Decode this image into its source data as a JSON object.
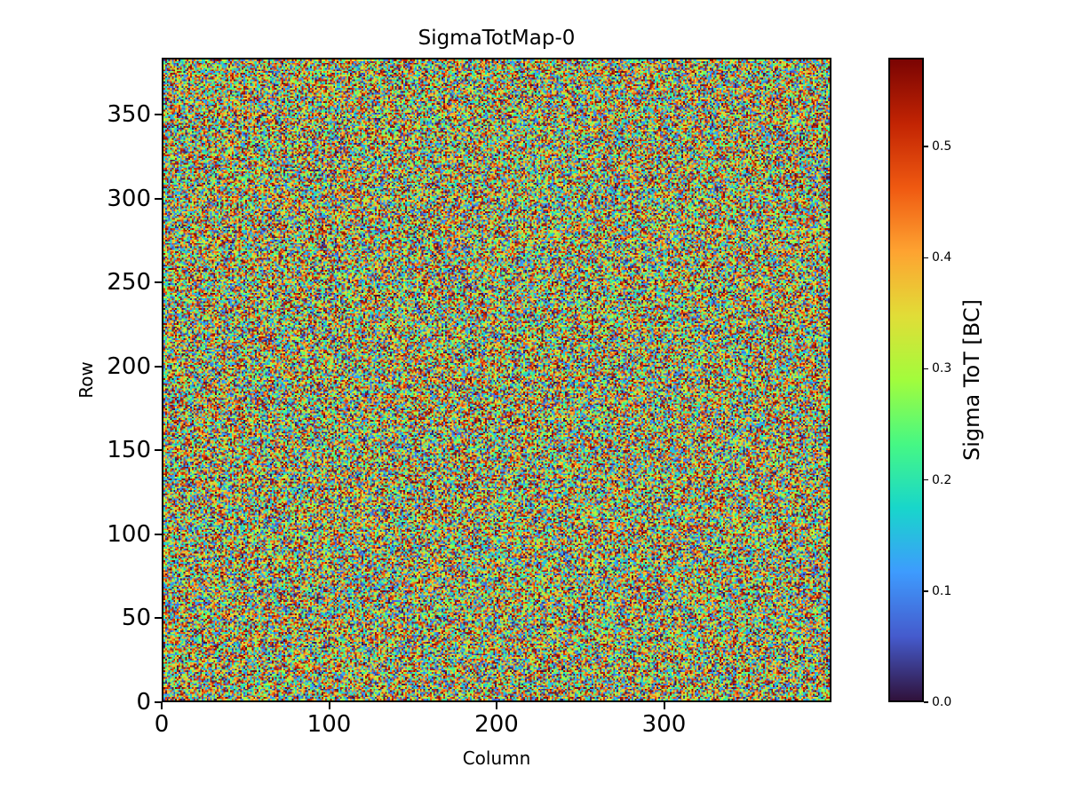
{
  "figure": {
    "background": "#ffffff",
    "text_color": "#000000"
  },
  "chart_data": {
    "type": "heatmap",
    "title": "SigmaTotMap-0",
    "xlabel": "Column",
    "ylabel": "Row",
    "x_range": [
      0,
      400
    ],
    "y_range": [
      0,
      384
    ],
    "x_ticks": [
      0,
      100,
      200,
      300
    ],
    "y_ticks": [
      0,
      50,
      100,
      150,
      200,
      250,
      300,
      350
    ],
    "grid": false,
    "legend": "none",
    "cells": {
      "cols": 400,
      "rows": 384,
      "description": "per-pixel uniform random noise spanning the full color scale (no visible spatial structure)",
      "value_min": 0.0,
      "value_max": 0.58
    },
    "colorbar": {
      "label": "Sigma ToT [BC]",
      "ticks": [
        0.0,
        0.1,
        0.2,
        0.3,
        0.4,
        0.5
      ],
      "tick_decimals": 1,
      "vmin": 0.0,
      "vmax": 0.58,
      "position": "right"
    },
    "colormap": {
      "name": "turbo",
      "stops": [
        {
          "t": 0.0,
          "color": "#30123b"
        },
        {
          "t": 0.1,
          "color": "#455bcd"
        },
        {
          "t": 0.2,
          "color": "#3e9bfe"
        },
        {
          "t": 0.3,
          "color": "#18d6cb"
        },
        {
          "t": 0.4,
          "color": "#46f884"
        },
        {
          "t": 0.5,
          "color": "#a2fc3c"
        },
        {
          "t": 0.6,
          "color": "#e1dd37"
        },
        {
          "t": 0.7,
          "color": "#fea331"
        },
        {
          "t": 0.8,
          "color": "#ef5911"
        },
        {
          "t": 0.9,
          "color": "#c22403"
        },
        {
          "t": 1.0,
          "color": "#7a0403"
        }
      ]
    }
  }
}
